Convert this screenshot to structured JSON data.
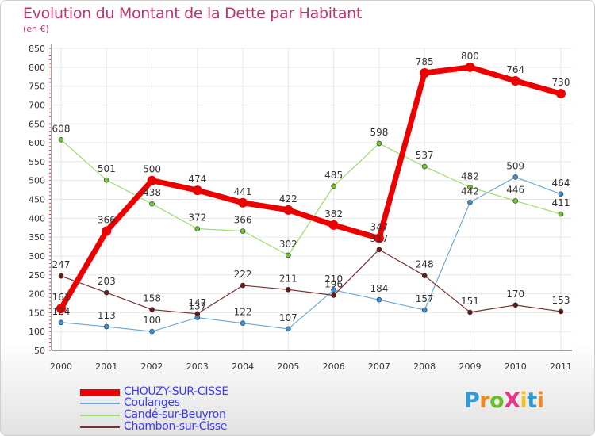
{
  "title": "Evolution du Montant de la Dette par Habitant",
  "subtitle": "(en €)",
  "logo": {
    "text": "ProXiti",
    "letters": [
      {
        "ch": "P",
        "color": "#2e9bd6"
      },
      {
        "ch": "r",
        "color": "#f08a1c"
      },
      {
        "ch": "o",
        "color": "#6cbf2a"
      },
      {
        "ch": "X",
        "color": "#e8348a"
      },
      {
        "ch": "i",
        "color": "#f3c21a"
      },
      {
        "ch": "t",
        "color": "#2e9bd6"
      },
      {
        "ch": "i",
        "color": "#f08a1c"
      }
    ]
  },
  "chart_data": {
    "type": "line",
    "x": [
      "2000",
      "2001",
      "2002",
      "2003",
      "2004",
      "2005",
      "2006",
      "2007",
      "2008",
      "2009",
      "2010",
      "2011"
    ],
    "ylim": [
      50,
      850
    ],
    "yticks": [
      50,
      100,
      150,
      200,
      250,
      300,
      350,
      400,
      450,
      500,
      550,
      600,
      650,
      700,
      750,
      800,
      850
    ],
    "grid": true,
    "legend": "bottom-left",
    "series": [
      {
        "name": "CHOUZY-SUR-CISSE",
        "color": "#ee0000",
        "width": 7,
        "marker": 5,
        "values": [
          161,
          366,
          500,
          474,
          441,
          422,
          382,
          347,
          785,
          800,
          764,
          730
        ],
        "labels": [
          "161",
          "366",
          "500",
          "474",
          "441",
          "422",
          "382",
          "347",
          "785",
          "800",
          "764",
          "730"
        ]
      },
      {
        "name": "Coulanges",
        "color": "#6baad8",
        "width": 1.2,
        "marker": 3,
        "markerFill": "#3a8fd8",
        "values": [
          124,
          113,
          100,
          137,
          122,
          107,
          210,
          184,
          157,
          442,
          509,
          464
        ],
        "labels": [
          "124",
          "113",
          "100",
          "137",
          "122",
          "107",
          "210",
          "184",
          "157",
          "442",
          "509",
          "464"
        ]
      },
      {
        "name": "Candé-sur-Beuyron",
        "color": "#99e06a",
        "width": 1.2,
        "marker": 3,
        "markerFill": "#6cc632",
        "values": [
          608,
          501,
          438,
          372,
          366,
          302,
          485,
          598,
          537,
          482,
          446,
          411
        ],
        "labels": [
          "608",
          "501",
          "438",
          "372",
          "366",
          "302",
          "485",
          "598",
          "537",
          "482",
          "446",
          "411"
        ]
      },
      {
        "name": "Chambon-sur-Cisse",
        "color": "#7a3030",
        "width": 1.2,
        "marker": 3,
        "markerFill": "#6a1818",
        "values": [
          247,
          203,
          158,
          147,
          222,
          211,
          196,
          317,
          248,
          151,
          170,
          153
        ],
        "labels": [
          "247",
          "203",
          "158",
          "147",
          "222",
          "211",
          "196",
          "317",
          "248",
          "151",
          "170",
          "153"
        ]
      }
    ]
  }
}
